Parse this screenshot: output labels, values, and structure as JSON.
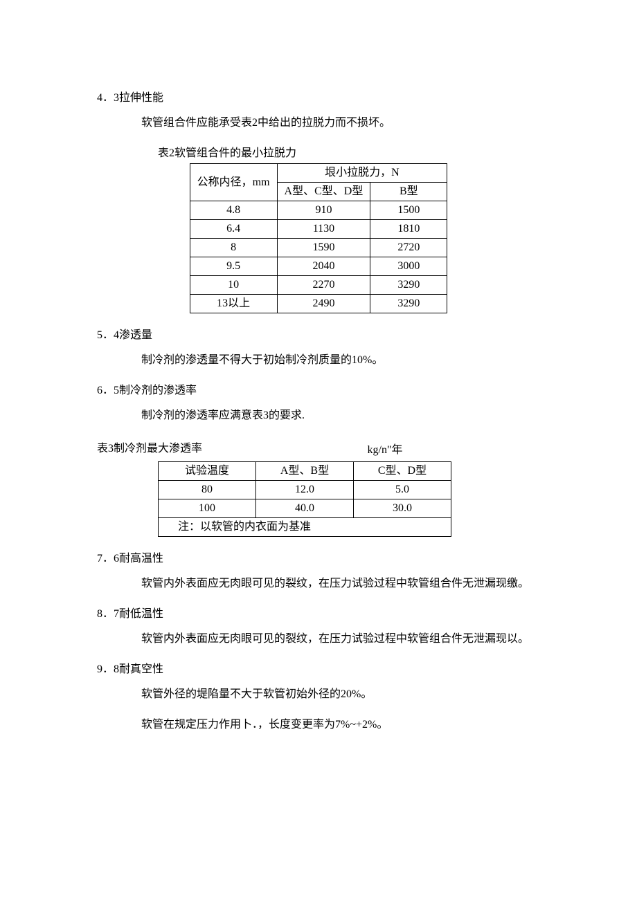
{
  "sections": {
    "s1": {
      "num": "4．3",
      "title": "拉伸性能",
      "body": "软管组合件应能承受表2中给出的拉脱力而不损坏。"
    },
    "s2": {
      "num": "5．4",
      "title": "渗透量",
      "body": "制冷剂的渗透量不得大于初始制冷剂质量的10%。"
    },
    "s3": {
      "num": "6．5",
      "title": "制冷剂的渗透率",
      "body": "制冷剂的渗透率应满意表3的要求."
    },
    "s4": {
      "num": "7．6",
      "title": "耐高温性",
      "body": "软管内外表面应无肉眼可见的裂纹，在压力试验过程中软管组合件无泄漏现缴。"
    },
    "s5": {
      "num": "8．7",
      "title": "耐低温性",
      "body": "软管内外表面应无肉眼可见的裂纹，在压力试验过程中软管组合件无泄漏现以。"
    },
    "s6": {
      "num": "9．8",
      "title": "耐真空性",
      "body1": "软管外径的堤陷量不大于软管初始外径的20%。",
      "body2": "软管在规定压力作用卜．，长度变更率为7%~+2%。"
    }
  },
  "table2": {
    "caption": "表2软管组合件的最小拉脱力",
    "h_col1": "公称内径，mm",
    "h_group": "垠小拉脱力，N",
    "h_colA": "A型、C型、D型",
    "h_colB": "B型",
    "rows": [
      {
        "c1": "4.8",
        "c2": "910",
        "c3": "1500"
      },
      {
        "c1": "6.4",
        "c2": "1130",
        "c3": "1810"
      },
      {
        "c1": "8",
        "c2": "1590",
        "c3": "2720"
      },
      {
        "c1": "9.5",
        "c2": "2040",
        "c3": "3000"
      },
      {
        "c1": "10",
        "c2": "2270",
        "c3": "3290"
      },
      {
        "c1": "13以上",
        "c2": "2490",
        "c3": "3290"
      }
    ]
  },
  "table3": {
    "caption": "表3制冷剂最大渗透率",
    "unit": "kg/n\"年",
    "h1": "试验温度",
    "h2": "A型、B型",
    "h3": "C型、D型",
    "rows": [
      {
        "c1": "80",
        "c2": "12.0",
        "c3": "5.0"
      },
      {
        "c1": "100",
        "c2": "40.0",
        "c3": "30.0"
      }
    ],
    "note": "注：以软管的内衣面为基准"
  }
}
